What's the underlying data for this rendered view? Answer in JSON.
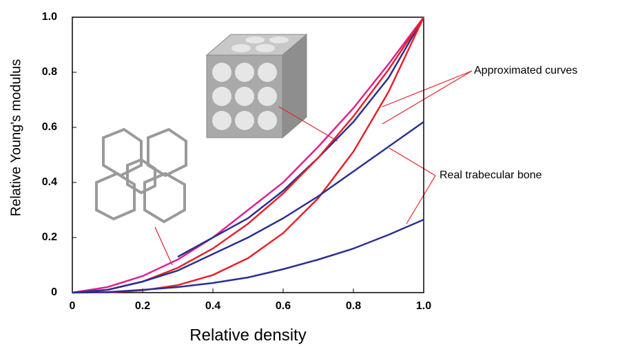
{
  "chart_data": {
    "type": "line",
    "x_label": "Relative density",
    "y_label": "Relative Young's modulus",
    "x": [
      0,
      0.1,
      0.2,
      0.3,
      0.4,
      0.5,
      0.6,
      0.7,
      0.8,
      0.9,
      {
        "value": 1,
        "label": "1.0"
      }
    ],
    "series": [
      {
        "color": "#e0208c",
        "values": [
          0,
          0.02,
          0.06,
          0.12,
          0.2,
          0.3,
          0.4,
          0.53,
          0.67,
          0.83,
          1
        ]
      },
      {
        "color": "#2b2f8f",
        "values": [
          null,
          null,
          null,
          0.13,
          0.2,
          0.27,
          0.37,
          0.49,
          0.62,
          0.78,
          1
        ]
      },
      {
        "color": "#e3222b",
        "values": [
          0,
          0.01,
          0.04,
          0.09,
          0.16,
          0.25,
          0.36,
          0.49,
          0.64,
          0.81,
          1
        ]
      },
      {
        "color": "#e3222b",
        "values": [
          0,
          0.001,
          0.008,
          0.027,
          0.064,
          0.125,
          0.216,
          0.343,
          0.512,
          0.729,
          1
        ]
      },
      {
        "color": "#2b2f8f",
        "values": [
          0,
          0.01,
          0.04,
          0.08,
          0.14,
          0.2,
          0.27,
          0.35,
          0.44,
          0.53,
          0.62
        ]
      },
      {
        "color": "#2b2f8f",
        "values": [
          0,
          0.002,
          0.01,
          0.02,
          0.035,
          0.055,
          0.085,
          0.12,
          0.16,
          0.21,
          0.265
        ]
      }
    ],
    "xlim": [
      0,
      1
    ],
    "ylim": [
      0,
      1
    ],
    "xticks": [
      0,
      0.2,
      0.4,
      0.6,
      0.8,
      {
        "value": 1,
        "label": "1.0"
      }
    ],
    "yticks": [
      0,
      0.2,
      0.4,
      0.6,
      0.8,
      {
        "value": 1,
        "label": "1.0"
      }
    ],
    "annotations": [
      "Approximated curves",
      "Real trabecular bone"
    ]
  }
}
